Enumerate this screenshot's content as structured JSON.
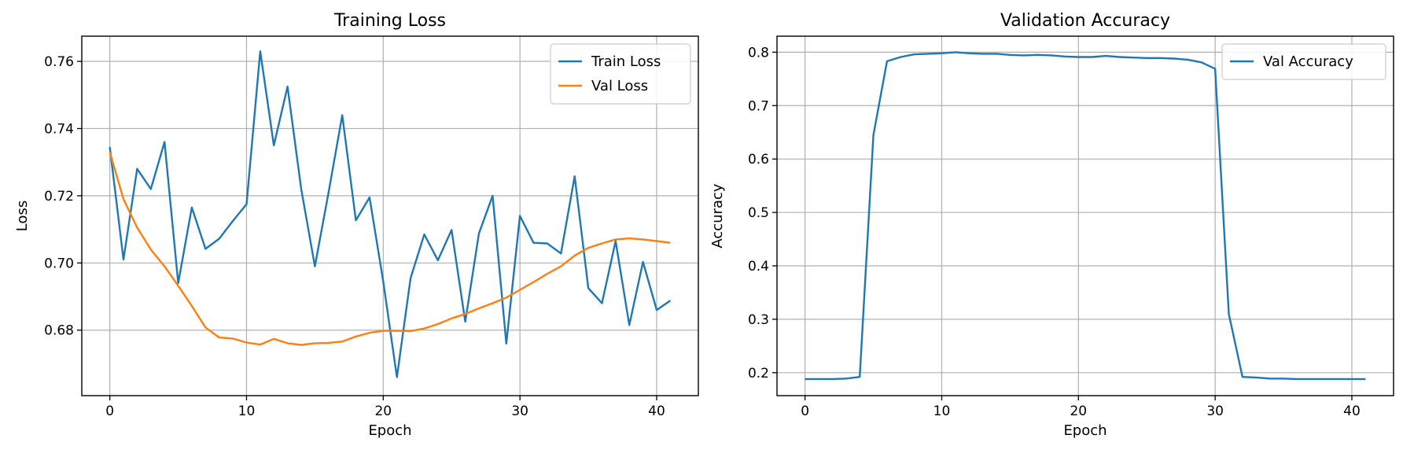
{
  "chart_data": [
    {
      "type": "line",
      "title": "Training Loss",
      "xlabel": "Epoch",
      "ylabel": "Loss",
      "xlim": [
        -2.05,
        43.05
      ],
      "ylim": [
        0.6605,
        0.7675
      ],
      "xticks": [
        0,
        10,
        20,
        30,
        40
      ],
      "yticks": [
        0.68,
        0.7,
        0.72,
        0.74,
        0.76
      ],
      "ytick_decimals": 2,
      "grid": true,
      "legend": "top-right",
      "series": [
        {
          "name": "Train Loss",
          "color": "#1f77b4",
          "x": [
            0,
            1,
            2,
            3,
            4,
            5,
            6,
            7,
            8,
            9,
            10,
            11,
            12,
            13,
            14,
            15,
            16,
            17,
            18,
            19,
            20,
            21,
            22,
            23,
            24,
            25,
            26,
            27,
            28,
            29,
            30,
            31,
            32,
            33,
            34,
            35,
            36,
            37,
            38,
            39,
            40,
            41
          ],
          "y": [
            0.7345,
            0.701,
            0.728,
            0.722,
            0.736,
            0.694,
            0.7165,
            0.7042,
            0.7072,
            0.7125,
            0.7175,
            0.763,
            0.735,
            0.7525,
            0.722,
            0.699,
            0.721,
            0.744,
            0.7127,
            0.7195,
            0.6945,
            0.666,
            0.6955,
            0.7085,
            0.7008,
            0.7098,
            0.6825,
            0.7088,
            0.72,
            0.676,
            0.714,
            0.706,
            0.7058,
            0.7028,
            0.7258,
            0.6925,
            0.688,
            0.7065,
            0.6815,
            0.7003,
            0.686,
            0.6888
          ]
        },
        {
          "name": "Val Loss",
          "color": "#ff7f0e",
          "x": [
            0,
            1,
            2,
            3,
            4,
            5,
            6,
            7,
            8,
            9,
            10,
            11,
            12,
            13,
            14,
            15,
            16,
            17,
            18,
            19,
            20,
            21,
            22,
            23,
            24,
            25,
            26,
            27,
            28,
            29,
            30,
            31,
            32,
            33,
            34,
            35,
            36,
            37,
            38,
            39,
            40,
            41
          ],
          "y": [
            0.733,
            0.719,
            0.7105,
            0.704,
            0.699,
            0.6932,
            0.6872,
            0.6808,
            0.6778,
            0.6775,
            0.6763,
            0.6757,
            0.6774,
            0.6761,
            0.6756,
            0.6761,
            0.6762,
            0.6766,
            0.6781,
            0.6792,
            0.6798,
            0.6798,
            0.6797,
            0.6805,
            0.6818,
            0.6835,
            0.6848,
            0.6865,
            0.688,
            0.6897,
            0.692,
            0.6943,
            0.6968,
            0.699,
            0.7022,
            0.7045,
            0.7058,
            0.707,
            0.7073,
            0.707,
            0.7065,
            0.706
          ]
        }
      ]
    },
    {
      "type": "line",
      "title": "Validation Accuracy",
      "xlabel": "Epoch",
      "ylabel": "Accuracy",
      "xlim": [
        -2.05,
        43.05
      ],
      "ylim": [
        0.157,
        0.83
      ],
      "xticks": [
        0,
        10,
        20,
        30,
        40
      ],
      "yticks": [
        0.2,
        0.3,
        0.4,
        0.5,
        0.6,
        0.7,
        0.8
      ],
      "ytick_decimals": 1,
      "grid": true,
      "legend": "top-right",
      "series": [
        {
          "name": "Val Accuracy",
          "color": "#1f77b4",
          "x": [
            0,
            1,
            2,
            3,
            4,
            5,
            6,
            7,
            8,
            9,
            10,
            11,
            12,
            13,
            14,
            15,
            16,
            17,
            18,
            19,
            20,
            21,
            22,
            23,
            24,
            25,
            26,
            27,
            28,
            29,
            30,
            31,
            32,
            33,
            34,
            35,
            36,
            37,
            38,
            39,
            40,
            41
          ],
          "y": [
            0.188,
            0.188,
            0.188,
            0.189,
            0.192,
            0.645,
            0.783,
            0.791,
            0.796,
            0.797,
            0.798,
            0.8,
            0.798,
            0.797,
            0.797,
            0.795,
            0.794,
            0.795,
            0.794,
            0.792,
            0.791,
            0.791,
            0.793,
            0.791,
            0.79,
            0.789,
            0.789,
            0.788,
            0.786,
            0.781,
            0.769,
            0.31,
            0.192,
            0.191,
            0.189,
            0.189,
            0.188,
            0.188,
            0.188,
            0.188,
            0.188,
            0.188
          ]
        }
      ]
    }
  ]
}
